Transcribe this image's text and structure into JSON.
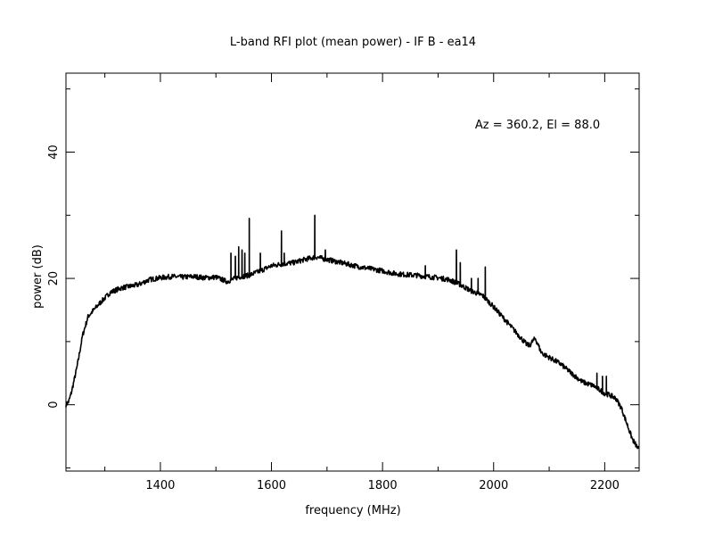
{
  "chart_data": {
    "type": "line",
    "title": "L-band RFI plot (mean power) - IF B - ea14",
    "xlabel": "frequency (MHz)",
    "ylabel": "power (dB)",
    "annotation": "Az = 360.2, El = 88.0",
    "xlim": [
      1230,
      2262
    ],
    "ylim": [
      -10.5,
      52.5
    ],
    "xticks_major": [
      1400,
      1600,
      1800,
      2000,
      2200
    ],
    "yticks_major": [
      0,
      20,
      40
    ],
    "x_minor_step": 100,
    "y_minor_step": 20,
    "grid": false,
    "line_color": "#000000",
    "series": [
      {
        "baseline": [
          [
            1230,
            0
          ],
          [
            1235,
            0.5
          ],
          [
            1240,
            2
          ],
          [
            1250,
            6
          ],
          [
            1260,
            11
          ],
          [
            1270,
            14
          ],
          [
            1290,
            16
          ],
          [
            1310,
            17.8
          ],
          [
            1330,
            18.5
          ],
          [
            1360,
            19
          ],
          [
            1380,
            19.8
          ],
          [
            1400,
            20.1
          ],
          [
            1420,
            20.3
          ],
          [
            1440,
            20.2
          ],
          [
            1460,
            20.3
          ],
          [
            1480,
            20.1
          ],
          [
            1500,
            20.2
          ],
          [
            1520,
            19.5
          ],
          [
            1540,
            20.2
          ],
          [
            1560,
            20.5
          ],
          [
            1580,
            21.2
          ],
          [
            1600,
            22
          ],
          [
            1620,
            22.3
          ],
          [
            1640,
            22.5
          ],
          [
            1660,
            23
          ],
          [
            1680,
            23.4
          ],
          [
            1700,
            23
          ],
          [
            1720,
            22.6
          ],
          [
            1740,
            22.2
          ],
          [
            1760,
            21.8
          ],
          [
            1780,
            21.5
          ],
          [
            1800,
            21.2
          ],
          [
            1820,
            20.8
          ],
          [
            1840,
            20.6
          ],
          [
            1860,
            20.5
          ],
          [
            1880,
            20.3
          ],
          [
            1900,
            20.1
          ],
          [
            1920,
            19.8
          ],
          [
            1940,
            19
          ],
          [
            1960,
            18
          ],
          [
            1980,
            17.3
          ],
          [
            2000,
            15.5
          ],
          [
            2020,
            13.5
          ],
          [
            2040,
            11.5
          ],
          [
            2060,
            9.5
          ],
          [
            2070,
            9.3
          ],
          [
            2080,
            8.8
          ],
          [
            2090,
            8
          ],
          [
            2100,
            7.5
          ],
          [
            2120,
            6.5
          ],
          [
            2140,
            5
          ],
          [
            2160,
            3.6
          ],
          [
            2180,
            3
          ],
          [
            2200,
            1.8
          ],
          [
            2210,
            1.5
          ],
          [
            2220,
            1
          ],
          [
            2230,
            -0.5
          ],
          [
            2240,
            -3
          ],
          [
            2250,
            -5.5
          ],
          [
            2262,
            -7.2
          ]
        ],
        "spikes": [
          [
            1527,
            24
          ],
          [
            1535,
            23.5
          ],
          [
            1541,
            25
          ],
          [
            1547,
            24.5
          ],
          [
            1552,
            24
          ],
          [
            1560,
            29.5
          ],
          [
            1580,
            24
          ],
          [
            1618,
            27.5
          ],
          [
            1623,
            24
          ],
          [
            1678,
            30
          ],
          [
            1697,
            24.5
          ],
          [
            1877,
            22
          ],
          [
            1933,
            24.5
          ],
          [
            1940,
            22.5
          ],
          [
            1960,
            20
          ],
          [
            1972,
            20
          ],
          [
            1985,
            21.8
          ],
          [
            2186,
            5
          ],
          [
            2196,
            4.5
          ],
          [
            2203,
            4.5
          ]
        ],
        "bump": [
          [
            2065,
            9
          ],
          [
            2075,
            10.5
          ],
          [
            2085,
            9
          ]
        ]
      }
    ]
  }
}
